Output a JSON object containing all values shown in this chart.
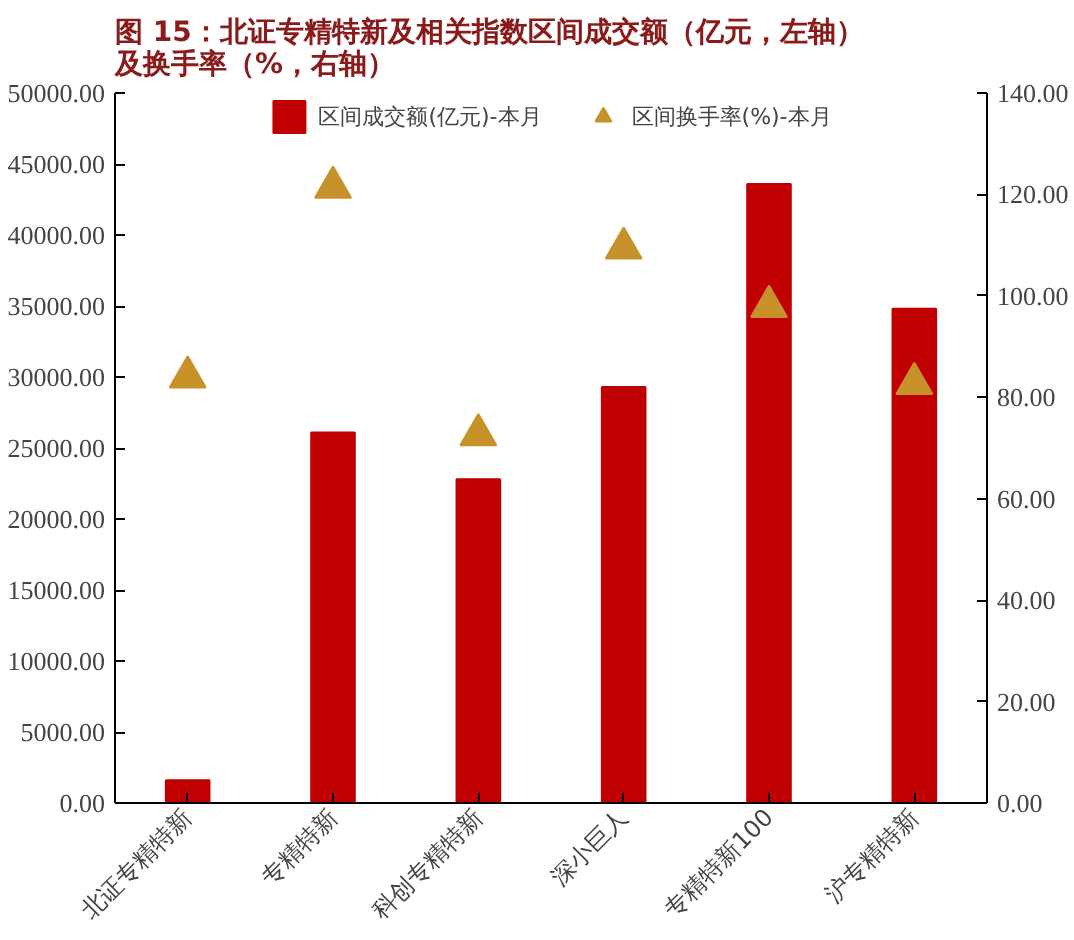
{
  "chart_data": {
    "type": "bar",
    "title": "图 15：北证专精特新及相关指数区间成交额（亿元，左轴）及换手率（%，右轴）",
    "categories": [
      "北证专精特新",
      "专精特新",
      "科创专精特新",
      "深小巨人",
      "专精特新100",
      "沪专精特新"
    ],
    "series": [
      {
        "name": "区间成交额(亿元)-本月",
        "color": "#c00000",
        "values": [
          1600,
          26100,
          22800,
          29300,
          43600,
          34800
        ]
      },
      {
        "name": "区间换手率(%)-本月",
        "color": "#c8922a",
        "type": "scatter",
        "axis": "y2",
        "marker": "triangle",
        "values": [
          84,
          121.4,
          72.6,
          109.4,
          97.9,
          82.7
        ]
      }
    ],
    "ylim": [
      0,
      50000
    ],
    "yticks": [
      {
        "value": 0,
        "label": "0.00"
      },
      {
        "value": 5000,
        "label": "5000.00"
      },
      {
        "value": 10000,
        "label": "10000.00"
      },
      {
        "value": 15000,
        "label": "15000.00"
      },
      {
        "value": 20000,
        "label": "20000.00"
      },
      {
        "value": 25000,
        "label": "25000.00"
      },
      {
        "value": 30000,
        "label": "30000.00"
      },
      {
        "value": 35000,
        "label": "35000.00"
      },
      {
        "value": 40000,
        "label": "40000.00"
      },
      {
        "value": 45000,
        "label": "45000.00"
      },
      {
        "value": 50000,
        "label": "50000.00"
      }
    ],
    "y2lim": [
      0,
      140
    ],
    "y2ticks": [
      {
        "value": 0,
        "label": "0.00"
      },
      {
        "value": 20,
        "label": "20.00"
      },
      {
        "value": 40,
        "label": "40.00"
      },
      {
        "value": 60,
        "label": "60.00"
      },
      {
        "value": 80,
        "label": "80.00"
      },
      {
        "value": 100,
        "label": "100.00"
      },
      {
        "value": 120,
        "label": "120.00"
      },
      {
        "value": 140,
        "label": "140.00"
      }
    ],
    "grid": false,
    "legend": "top"
  }
}
